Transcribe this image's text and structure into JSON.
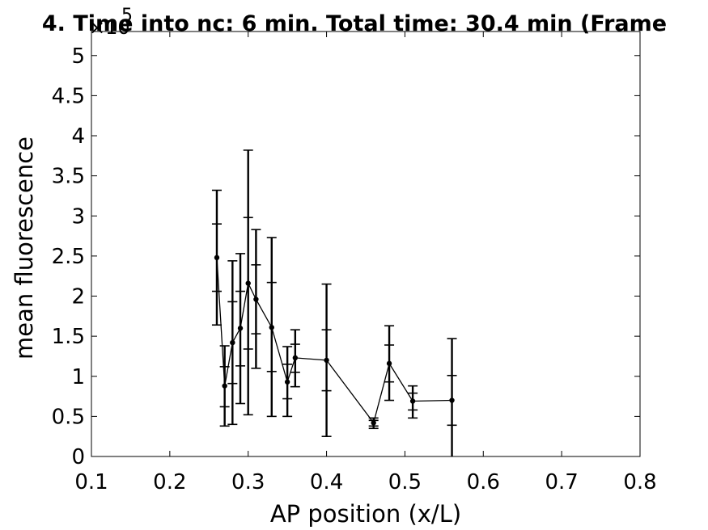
{
  "chart_data": {
    "type": "line",
    "title": "4. Time into nc: 6 min. Total time: 30.4 min (Frame",
    "xlabel": "AP position (x/L)",
    "ylabel": "mean fluorescence",
    "y_exponent_label": "×10",
    "y_exponent_power": "5",
    "xlim": [
      0.1,
      0.8
    ],
    "ylim": [
      0,
      5.3
    ],
    "xticks": [
      "0.1",
      "0.2",
      "0.3",
      "0.4",
      "0.5",
      "0.6",
      "0.7",
      "0.8"
    ],
    "yticks": [
      "0",
      "0.5",
      "1",
      "1.5",
      "2",
      "2.5",
      "3",
      "3.5",
      "4",
      "4.5",
      "5"
    ],
    "xtick_values": [
      0.1,
      0.2,
      0.3,
      0.4,
      0.5,
      0.6,
      0.7,
      0.8
    ],
    "ytick_values": [
      0,
      0.5,
      1,
      1.5,
      2,
      2.5,
      3,
      3.5,
      4,
      4.5,
      5
    ],
    "grid": false,
    "series": [
      {
        "color": "#000000",
        "points": [
          {
            "x": 0.26,
            "y": 2.48,
            "lo": 1.64,
            "hi": 3.32,
            "lo_inner": 2.06,
            "hi_inner": 2.9
          },
          {
            "x": 0.27,
            "y": 0.88,
            "lo": 0.38,
            "hi": 1.38,
            "lo_inner": 0.62,
            "hi_inner": 1.12
          },
          {
            "x": 0.28,
            "y": 1.42,
            "lo": 0.4,
            "hi": 2.44,
            "lo_inner": 0.91,
            "hi_inner": 1.93
          },
          {
            "x": 0.29,
            "y": 1.6,
            "lo": 0.66,
            "hi": 2.53,
            "lo_inner": 1.13,
            "hi_inner": 2.06
          },
          {
            "x": 0.3,
            "y": 2.16,
            "lo": 0.52,
            "hi": 3.82,
            "lo_inner": 1.34,
            "hi_inner": 2.98
          },
          {
            "x": 0.31,
            "y": 1.96,
            "lo": 1.1,
            "hi": 2.83,
            "lo_inner": 1.53,
            "hi_inner": 2.39
          },
          {
            "x": 0.33,
            "y": 1.61,
            "lo": 0.5,
            "hi": 2.73,
            "lo_inner": 1.06,
            "hi_inner": 2.17
          },
          {
            "x": 0.35,
            "y": 0.93,
            "lo": 0.5,
            "hi": 1.37,
            "lo_inner": 0.72,
            "hi_inner": 1.15
          },
          {
            "x": 0.36,
            "y": 1.23,
            "lo": 0.87,
            "hi": 1.58,
            "lo_inner": 1.05,
            "hi_inner": 1.4
          },
          {
            "x": 0.4,
            "y": 1.2,
            "lo": 0.25,
            "hi": 2.15,
            "lo_inner": 0.82,
            "hi_inner": 1.58
          },
          {
            "x": 0.46,
            "y": 0.42,
            "lo": 0.35,
            "hi": 0.48,
            "lo_inner": 0.38,
            "hi_inner": 0.45
          },
          {
            "x": 0.48,
            "y": 1.16,
            "lo": 0.7,
            "hi": 1.63,
            "lo_inner": 0.93,
            "hi_inner": 1.39
          },
          {
            "x": 0.51,
            "y": 0.69,
            "lo": 0.48,
            "hi": 0.88,
            "lo_inner": 0.58,
            "hi_inner": 0.79
          },
          {
            "x": 0.56,
            "y": 0.7,
            "lo": -0.07,
            "hi": 1.47,
            "lo_inner": 0.39,
            "hi_inner": 1.01
          }
        ]
      }
    ]
  }
}
